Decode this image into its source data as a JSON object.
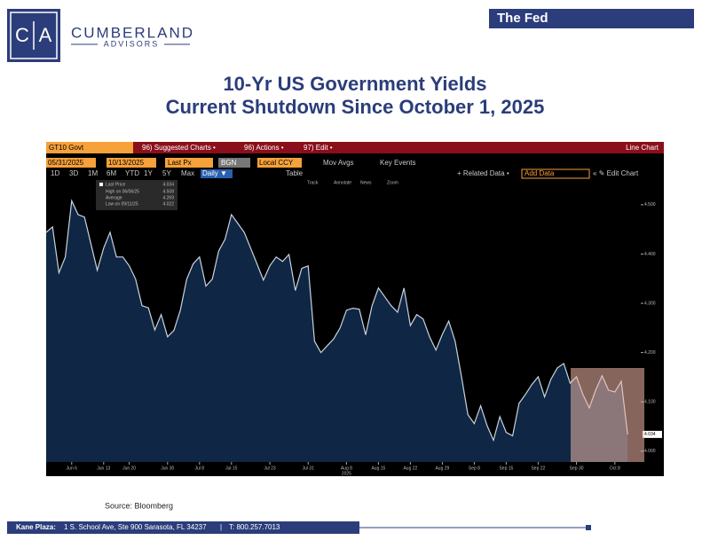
{
  "header": {
    "logo_left": "C",
    "logo_right": "A",
    "company": "CUMBERLAND",
    "division": "ADVISORS",
    "tag": "The Fed"
  },
  "chart_data": {
    "type": "line",
    "title": "10-Yr US Government Yields",
    "subtitle": "Current Shutdown Since October 1, 2025",
    "x_year": "2025",
    "categories": [
      null,
      null,
      null,
      null,
      "Jun 6",
      null,
      null,
      null,
      null,
      "Jun 13",
      null,
      null,
      null,
      "Jun 20",
      null,
      null,
      null,
      null,
      null,
      "Jun 30",
      null,
      null,
      null,
      null,
      "Jul 8",
      null,
      null,
      null,
      null,
      "Jul 15",
      null,
      null,
      null,
      null,
      null,
      "Jul 23",
      null,
      null,
      null,
      null,
      null,
      "Jul 31",
      null,
      null,
      null,
      null,
      null,
      "Aug 8",
      null,
      null,
      null,
      null,
      "Aug 15",
      null,
      null,
      null,
      null,
      "Aug 22",
      null,
      null,
      null,
      null,
      "Aug 29",
      null,
      null,
      null,
      null,
      "Sep 8",
      null,
      null,
      null,
      null,
      "Sep 15",
      null,
      null,
      null,
      null,
      "Sep 22",
      null,
      null,
      null,
      null,
      null,
      "Sep 30",
      null,
      null,
      null,
      null,
      null,
      "Oct 8",
      null,
      null
    ],
    "series": [
      {
        "name": "Last Price",
        "color": "#c9d3de",
        "values": [
          4.444,
          4.455,
          4.362,
          4.394,
          4.508,
          4.48,
          4.475,
          4.421,
          4.367,
          4.412,
          4.444,
          4.394,
          4.394,
          4.376,
          4.349,
          4.295,
          4.291,
          4.246,
          4.277,
          4.232,
          4.245,
          4.286,
          4.349,
          4.38,
          4.394,
          4.335,
          4.349,
          4.406,
          4.43,
          4.48,
          4.462,
          4.444,
          4.412,
          4.38,
          4.347,
          4.376,
          4.394,
          4.385,
          4.399,
          4.326,
          4.371,
          4.376,
          4.223,
          4.2,
          4.214,
          4.228,
          4.25,
          4.286,
          4.29,
          4.288,
          4.236,
          4.295,
          4.331,
          4.313,
          4.295,
          4.282,
          4.331,
          4.255,
          4.277,
          4.268,
          4.232,
          4.205,
          4.237,
          4.264,
          4.223,
          4.151,
          4.074,
          4.056,
          4.092,
          4.052,
          4.022,
          4.07,
          4.038,
          4.031,
          4.097,
          4.115,
          4.135,
          4.151,
          4.11,
          4.146,
          4.169,
          4.178,
          4.138,
          4.151,
          4.115,
          4.088,
          4.124,
          4.153,
          4.124,
          4.12,
          4.142,
          4.034
        ]
      }
    ],
    "area_color": "#0f2744",
    "ylim": [
      3.978,
      4.552
    ],
    "yticks": [
      {
        "value": 4,
        "label": "4.000"
      },
      {
        "value": 4.1,
        "label": "4.100"
      },
      {
        "value": 4.2,
        "label": "4.200"
      },
      {
        "value": 4.3,
        "label": "4.300"
      },
      {
        "value": 4.4,
        "label": "4.400"
      },
      {
        "value": 4.5,
        "label": "4.500"
      }
    ],
    "grid": false
  },
  "terminal": {
    "ticker": "GT10 Govt",
    "menus": [
      "96) Suggested Charts •",
      "96) Actions •",
      "97) Edit •"
    ],
    "chart_kind": "Line Chart",
    "start": "05/31/2025",
    "end": "10/13/2025",
    "field": "Last Px",
    "pricing": "BGN",
    "currency": "Local CCY",
    "toggles": [
      "Mov Avgs",
      "Key Events"
    ],
    "periods": [
      "1D",
      "3D",
      "1M",
      "6M",
      "YTD",
      "1Y",
      "5Y",
      "Max"
    ],
    "frequency": "Daily ▼",
    "table": "Table",
    "related": "+ Related Data •",
    "add": "Add Data",
    "edit": "« ✎ Edit Chart",
    "tools": [
      "Track",
      "Annotate",
      "News",
      "Zoom"
    ],
    "stats": [
      {
        "label": "High on 06/06/25",
        "value": 4.508
      },
      {
        "label": "Average",
        "value": 4.269
      },
      {
        "label": "Low on 09/11/25",
        "value": 4.022
      }
    ]
  },
  "source": "Source: Bloomberg",
  "footer": {
    "label": "Kane Plaza:",
    "address": "1 S. School Ave, Ste 900 Sarasota, FL 34237",
    "separator": "|",
    "phone": "T: 800.257.7013"
  }
}
